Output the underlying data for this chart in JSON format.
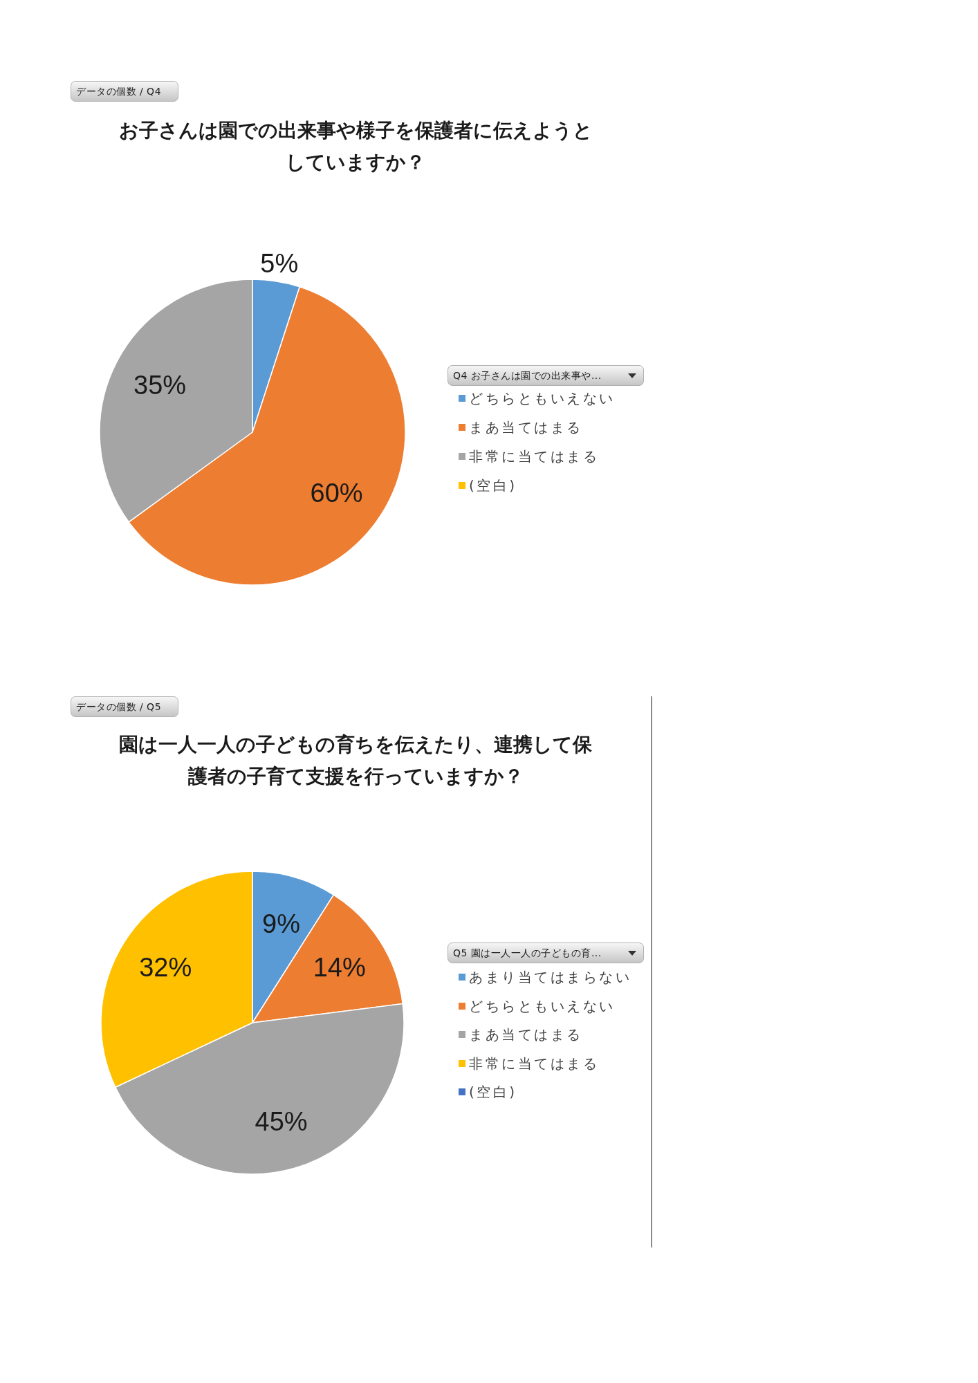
{
  "chart_data": [
    {
      "type": "pie",
      "title": "お子さんは園での出来事や様子を保護者に伝えようとしていますか？",
      "annotations": [
        "データの個数 / Q4"
      ],
      "legend_title": "Q4 お子さんは園での出来事や...",
      "categories": [
        "どちらともいえない",
        "まあ当てはまる",
        "非常に当てはまる",
        "(空白)"
      ],
      "values": [
        5,
        60,
        35,
        0
      ],
      "colors": [
        "#5b9bd5",
        "#ed7d31",
        "#a5a5a5",
        "#ffc000"
      ],
      "value_labels": [
        "5%",
        "60%",
        "35%",
        null
      ],
      "legend": "right"
    },
    {
      "type": "pie",
      "title": "園は一人一人の子どもの育ちを伝えたり、連携して保護者の子育て支援を行っていますか？",
      "annotations": [
        "データの個数 / Q5"
      ],
      "legend_title": "Q5 園は一人一人の子どもの育...",
      "categories": [
        "あまり当てはまらない",
        "どちらともいえない",
        "まあ当てはまる",
        "非常に当てはまる",
        "(空白)"
      ],
      "values": [
        9,
        14,
        45,
        32,
        0
      ],
      "colors": [
        "#5b9bd5",
        "#ed7d31",
        "#a5a5a5",
        "#ffc000",
        "#4472c4"
      ],
      "value_labels": [
        "9%",
        "14%",
        "45%",
        "32%",
        null
      ],
      "legend": "right"
    }
  ]
}
